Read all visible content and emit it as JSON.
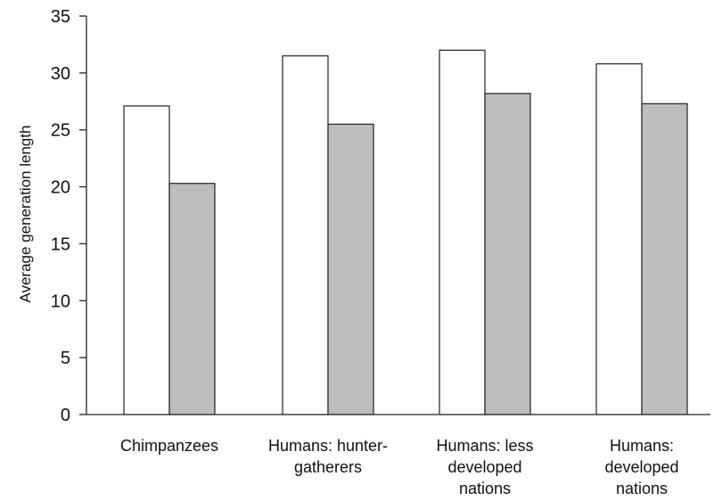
{
  "chart_data": {
    "type": "bar",
    "title": "",
    "xlabel": "",
    "ylabel": "Average generation length",
    "ylim": [
      0,
      35
    ],
    "yticks": [
      0,
      5,
      10,
      15,
      20,
      25,
      30,
      35
    ],
    "grid": false,
    "legend": "none",
    "categories": [
      [
        "Chimpanzees"
      ],
      [
        "Humans: hunter-",
        "gatherers"
      ],
      [
        "Humans: less",
        "developed",
        "nations"
      ],
      [
        "Humans:",
        "developed",
        "nations"
      ]
    ],
    "series": [
      {
        "values": [
          27.1,
          31.5,
          32.0,
          30.8
        ],
        "color": "#ffffff"
      },
      {
        "values": [
          20.3,
          25.5,
          28.2,
          27.3
        ],
        "color": "#bdbdbd"
      }
    ],
    "bar_stroke": "#222222"
  }
}
